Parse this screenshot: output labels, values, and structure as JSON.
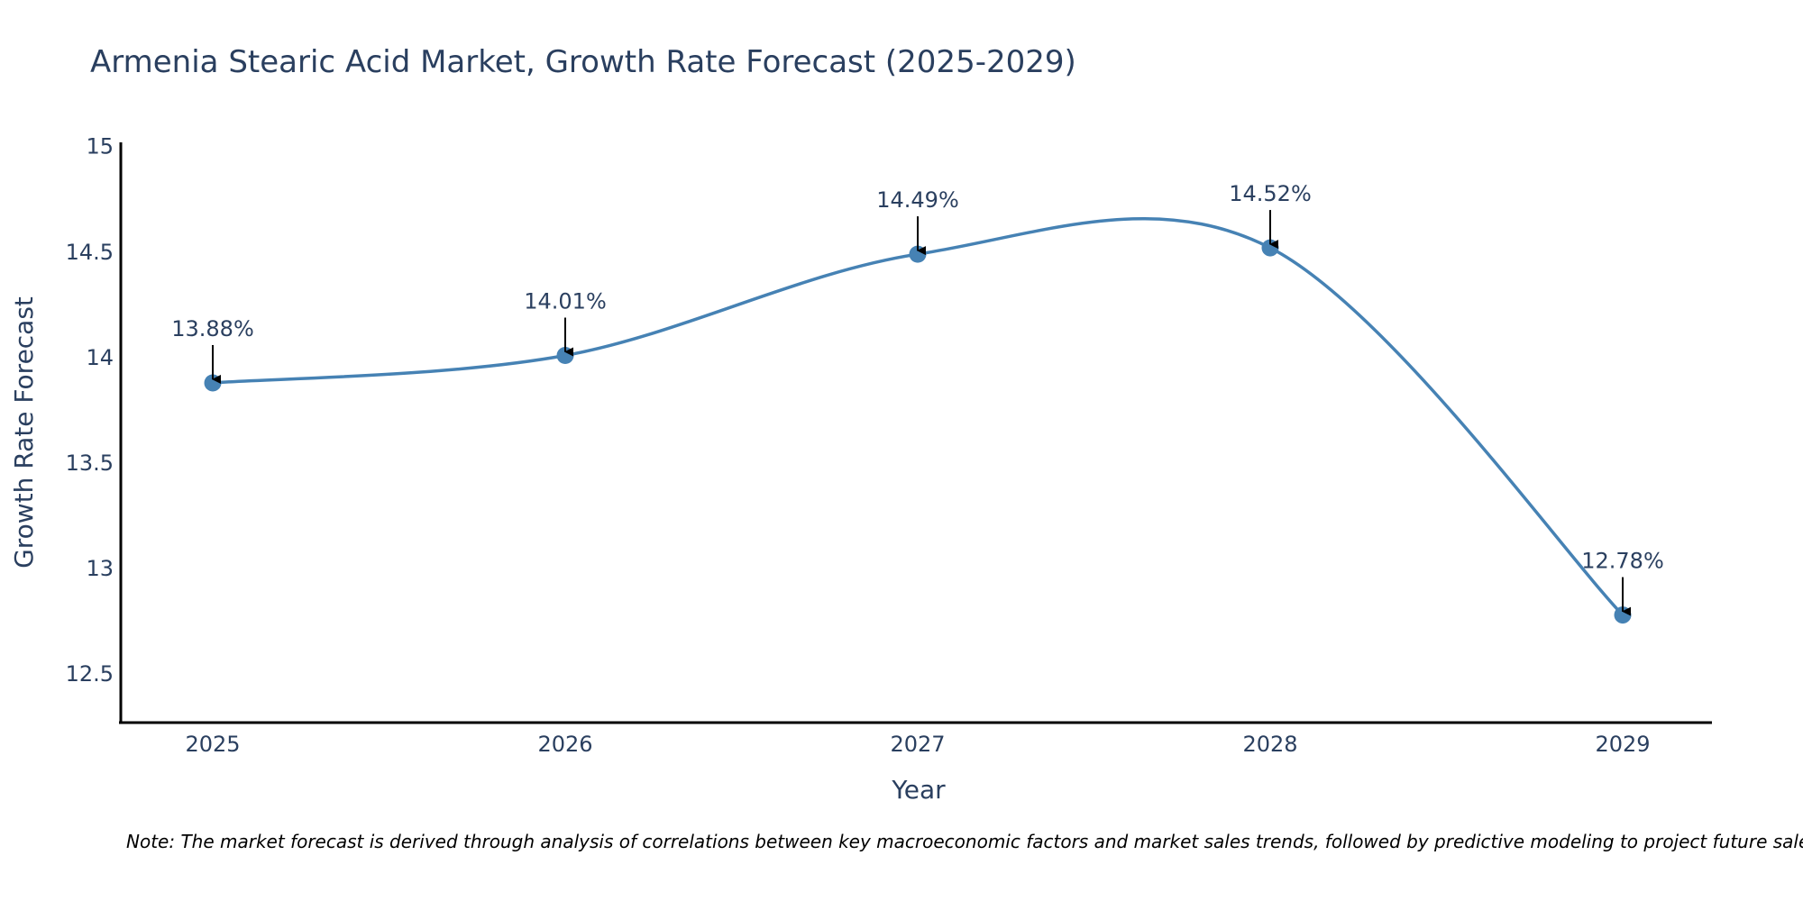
{
  "chart_data": {
    "type": "line",
    "title": "Armenia Stearic Acid Market, Growth Rate Forecast (2025-2029)",
    "xlabel": "Year",
    "ylabel": "Growth Rate Forecast",
    "categories": [
      "2025",
      "2026",
      "2027",
      "2028",
      "2029"
    ],
    "values": [
      13.88,
      14.01,
      14.49,
      14.52,
      12.78
    ],
    "data_labels": [
      "13.88%",
      "14.01%",
      "14.49%",
      "14.52%",
      "12.78%"
    ],
    "y_ticks": [
      12.5,
      13,
      13.5,
      14,
      14.5,
      15
    ],
    "y_tick_labels": [
      "12.5",
      "13",
      "13.5",
      "14",
      "14.5",
      "15"
    ],
    "ylim": [
      12.27,
      15.02
    ],
    "grid": false,
    "line_shape": "spline",
    "line_color": "#4682b4",
    "marker_color": "#4682b4",
    "arrow_color": "#000000"
  },
  "note": "Note: The market forecast is derived through analysis of correlations between key macroeconomic factors and market sales trends, followed by predictive modeling to project future sales."
}
